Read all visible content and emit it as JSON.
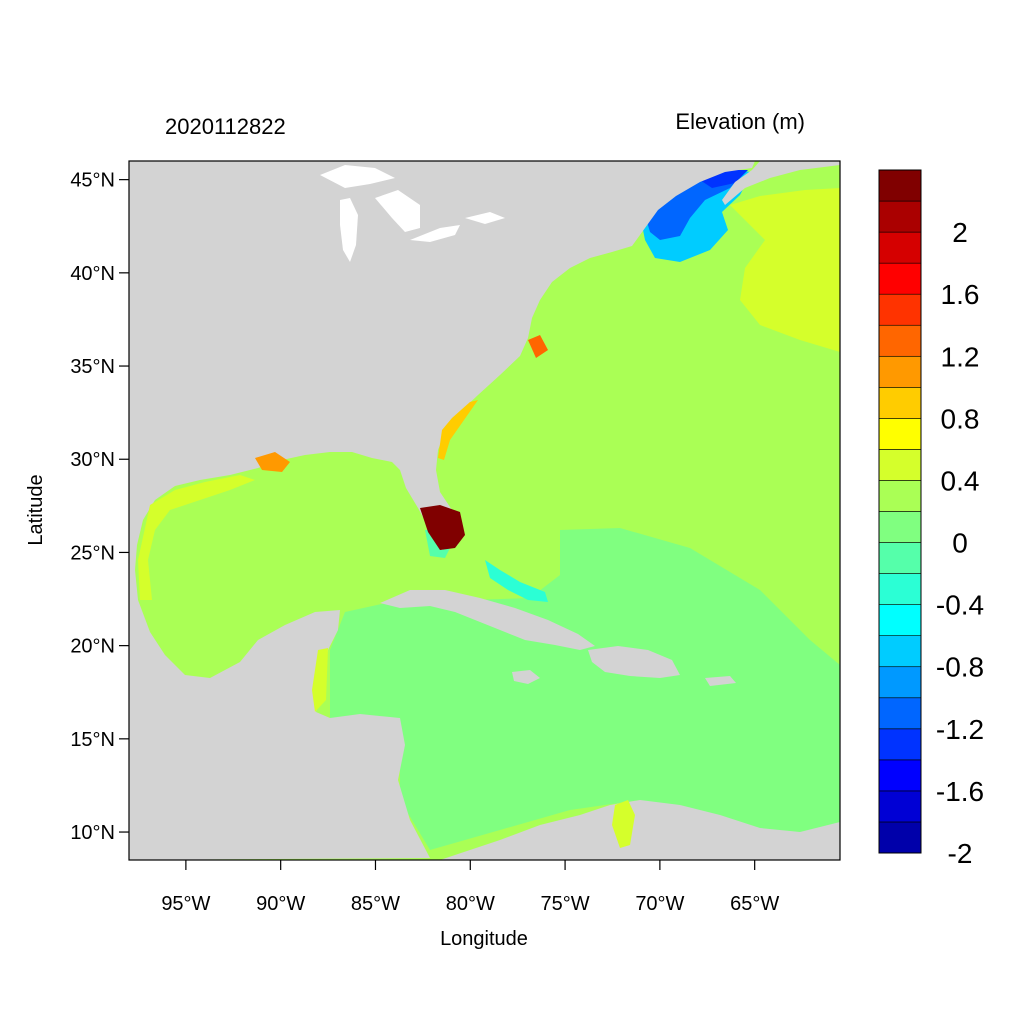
{
  "map": {
    "left_title": "2020112822",
    "right_title": "Elevation (m)",
    "xlabel": "Longitude",
    "ylabel": "Latitude",
    "lon_range": [
      -98,
      -60.5
    ],
    "lat_range": [
      8.5,
      46
    ],
    "lon_ticks": [
      {
        "value": -95,
        "label": "95°W"
      },
      {
        "value": -90,
        "label": "90°W"
      },
      {
        "value": -85,
        "label": "85°W"
      },
      {
        "value": -80,
        "label": "80°W"
      },
      {
        "value": -75,
        "label": "75°W"
      },
      {
        "value": -70,
        "label": "70°W"
      },
      {
        "value": -65,
        "label": "65°W"
      }
    ],
    "lat_ticks": [
      {
        "value": 45,
        "label": "45°N"
      },
      {
        "value": 40,
        "label": "40°N"
      },
      {
        "value": 35,
        "label": "35°N"
      },
      {
        "value": 30,
        "label": "30°N"
      },
      {
        "value": 25,
        "label": "25°N"
      },
      {
        "value": 20,
        "label": "20°N"
      },
      {
        "value": 15,
        "label": "15°N"
      },
      {
        "value": 10,
        "label": "10°N"
      }
    ],
    "colors": {
      "land": "#d3d3d3",
      "lakes": "#ffffff",
      "ocean_zero": "#aaff55",
      "ocean_slight_neg": "#80ff80"
    }
  },
  "colorbar": {
    "colors_bottom_to_top": [
      "#0000aa",
      "#0000d5",
      "#0000ff",
      "#0033ff",
      "#0066ff",
      "#0099ff",
      "#00ccff",
      "#00ffff",
      "#2bffd5",
      "#55ffaa",
      "#80ff80",
      "#aaff55",
      "#d5ff2b",
      "#ffff00",
      "#ffcc00",
      "#ff9900",
      "#ff6600",
      "#ff3300",
      "#ff0000",
      "#d50000",
      "#aa0000",
      "#800000"
    ],
    "labels": [
      "2",
      "1.6",
      "1.2",
      "0.8",
      "0.4",
      "0",
      "-0.4",
      "-0.8",
      "-1.2",
      "-1.6",
      "-2"
    ]
  }
}
